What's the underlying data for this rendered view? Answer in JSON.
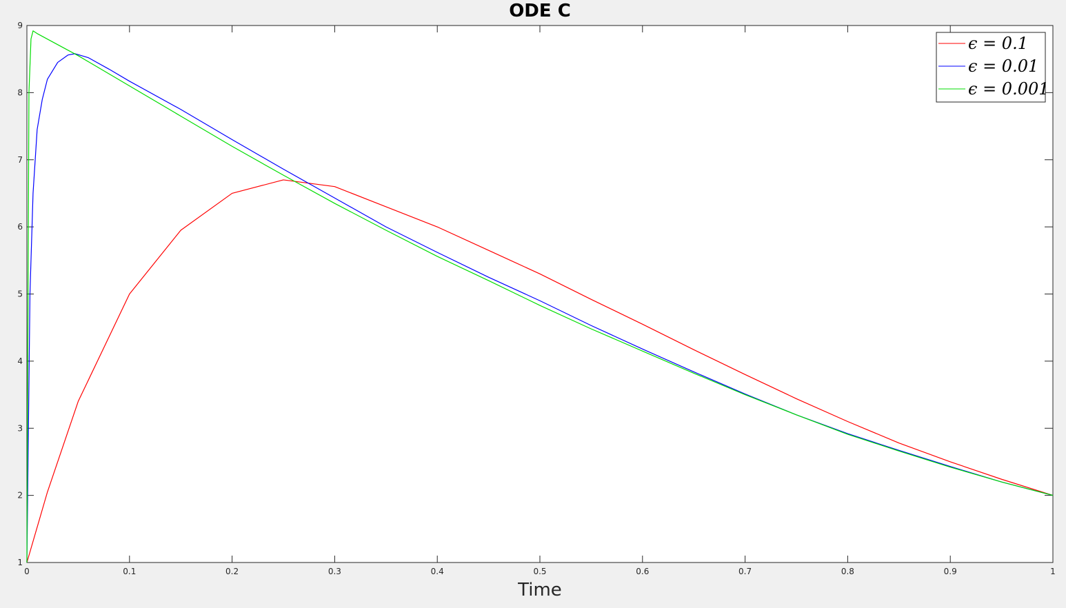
{
  "chart_data": {
    "type": "line",
    "title": "ODE C",
    "xlabel": "Time",
    "ylabel": "",
    "xlim": [
      0,
      1
    ],
    "ylim": [
      1,
      9
    ],
    "xticks": [
      0,
      0.1,
      0.2,
      0.3,
      0.4,
      0.5,
      0.6,
      0.7,
      0.8,
      0.9,
      1
    ],
    "xtick_labels": [
      "0",
      "0.1",
      "0.2",
      "0.3",
      "0.4",
      "0.5",
      "0.6",
      "0.7",
      "0.8",
      "0.9",
      "1"
    ],
    "yticks": [
      1,
      2,
      3,
      4,
      5,
      6,
      7,
      8,
      9
    ],
    "ytick_labels": [
      "1",
      "2",
      "3",
      "4",
      "5",
      "6",
      "7",
      "8",
      "9"
    ],
    "grid": false,
    "legend_position": "top-right",
    "series": [
      {
        "name": "ϵ = 0.1",
        "color": "#ff0000",
        "x": [
          0,
          0.02,
          0.05,
          0.1,
          0.15,
          0.2,
          0.25,
          0.3,
          0.35,
          0.4,
          0.45,
          0.5,
          0.55,
          0.6,
          0.65,
          0.7,
          0.75,
          0.8,
          0.85,
          0.9,
          0.95,
          1
        ],
        "y": [
          1.0,
          2.05,
          3.4,
          5.0,
          5.95,
          6.5,
          6.7,
          6.6,
          6.3,
          6.0,
          5.65,
          5.3,
          4.92,
          4.55,
          4.17,
          3.8,
          3.44,
          3.1,
          2.78,
          2.5,
          2.24,
          2.0
        ]
      },
      {
        "name": "ϵ = 0.01",
        "color": "#0000ff",
        "x": [
          0,
          0.003,
          0.006,
          0.01,
          0.015,
          0.02,
          0.03,
          0.04,
          0.047,
          0.06,
          0.08,
          0.1,
          0.15,
          0.2,
          0.25,
          0.3,
          0.35,
          0.4,
          0.45,
          0.5,
          0.55,
          0.6,
          0.65,
          0.7,
          0.75,
          0.8,
          0.85,
          0.9,
          0.95,
          1
        ],
        "y": [
          1.0,
          5.0,
          6.5,
          7.45,
          7.9,
          8.2,
          8.45,
          8.56,
          8.58,
          8.52,
          8.35,
          8.17,
          7.75,
          7.3,
          6.86,
          6.43,
          6.0,
          5.62,
          5.25,
          4.9,
          4.53,
          4.18,
          3.84,
          3.51,
          3.2,
          2.92,
          2.67,
          2.43,
          2.2,
          2.0
        ]
      },
      {
        "name": "ϵ = 0.001",
        "color": "#00dd00",
        "x": [
          0,
          0.002,
          0.004,
          0.006,
          0.01,
          0.05,
          0.1,
          0.15,
          0.2,
          0.25,
          0.3,
          0.35,
          0.4,
          0.45,
          0.5,
          0.55,
          0.6,
          0.65,
          0.7,
          0.75,
          0.8,
          0.85,
          0.9,
          0.95,
          1
        ],
        "y": [
          1.0,
          8.0,
          8.8,
          8.92,
          8.88,
          8.55,
          8.1,
          7.65,
          7.2,
          6.77,
          6.35,
          5.95,
          5.56,
          5.2,
          4.83,
          4.48,
          4.15,
          3.82,
          3.5,
          3.2,
          2.91,
          2.66,
          2.42,
          2.2,
          2.0
        ]
      }
    ]
  }
}
